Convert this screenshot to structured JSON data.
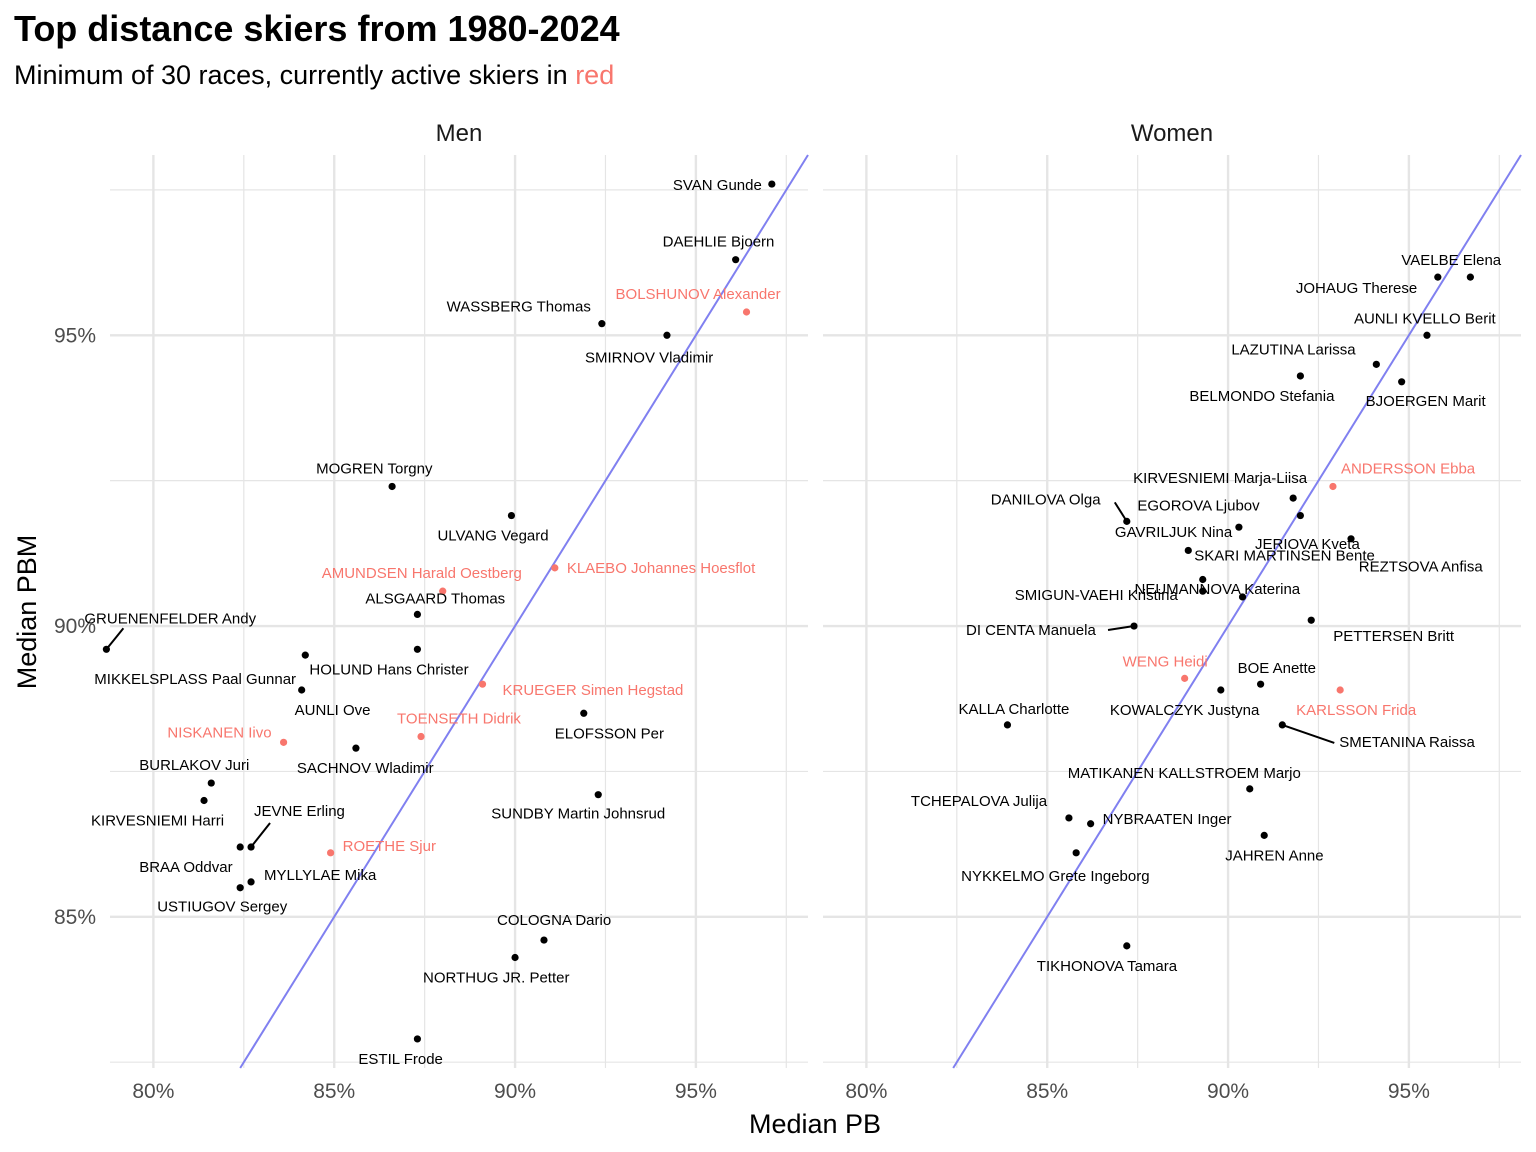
{
  "title": "Top distance skiers from 1980-2024",
  "subtitle": {
    "prefix": "Minimum of 30 races, currently active skiers in ",
    "accent_word": "red"
  },
  "colors": {
    "retired": "#000000",
    "active": "#F8766D",
    "reference_line": "#8080F0",
    "grid": "#E5E5E5",
    "axis_text": "#4D4D4D"
  },
  "chart_data": {
    "type": "scatter",
    "xlabel": "Median PB",
    "ylabel": "Median PBM",
    "x_ticks": [
      80,
      85,
      90,
      95
    ],
    "y_ticks": [
      85,
      90,
      95
    ],
    "tick_format": "{v}%",
    "xlim": [
      78.8,
      98.1
    ],
    "ylim": [
      82.4,
      98.1
    ],
    "reference_line": "y = x",
    "grid": true,
    "panels": [
      {
        "name": "Men",
        "points": [
          {
            "name": "SVAN Gunde",
            "x": 97.1,
            "y": 97.6,
            "active": false
          },
          {
            "name": "DAEHLIE Bjoern",
            "x": 96.1,
            "y": 96.3,
            "active": false
          },
          {
            "name": "BOLSHUNOV Alexander",
            "x": 96.4,
            "y": 95.4,
            "active": true
          },
          {
            "name": "WASSBERG Thomas",
            "x": 92.4,
            "y": 95.2,
            "active": false
          },
          {
            "name": "SMIRNOV Vladimir",
            "x": 94.2,
            "y": 95.0,
            "active": false
          },
          {
            "name": "MOGREN Torgny",
            "x": 86.6,
            "y": 92.4,
            "active": false
          },
          {
            "name": "ULVANG Vegard",
            "x": 89.9,
            "y": 91.9,
            "active": false
          },
          {
            "name": "KLAEBO Johannes Hoesflot",
            "x": 91.1,
            "y": 91.0,
            "active": true
          },
          {
            "name": "AMUNDSEN Harald Oestberg",
            "x": 88.0,
            "y": 90.6,
            "active": true
          },
          {
            "name": "GRUENENFELDER Andy",
            "x": 78.7,
            "y": 89.6,
            "active": false
          },
          {
            "name": "ALSGAARD Thomas",
            "x": 87.3,
            "y": 90.2,
            "active": false
          },
          {
            "name": "MIKKELSPLASS Paal Gunnar",
            "x": 84.2,
            "y": 89.5,
            "active": false
          },
          {
            "name": "HOLUND Hans Christer",
            "x": 87.3,
            "y": 89.6,
            "active": false
          },
          {
            "name": "KRUEGER Simen Hegstad",
            "x": 89.1,
            "y": 89.0,
            "active": true
          },
          {
            "name": "AUNLI Ove",
            "x": 84.1,
            "y": 88.9,
            "active": false
          },
          {
            "name": "ELOFSSON Per",
            "x": 91.9,
            "y": 88.5,
            "active": false
          },
          {
            "name": "TOENSETH Didrik",
            "x": 87.4,
            "y": 88.1,
            "active": true
          },
          {
            "name": "NISKANEN Iivo",
            "x": 83.6,
            "y": 88.0,
            "active": true
          },
          {
            "name": "SACHNOV Wladimir",
            "x": 85.6,
            "y": 87.9,
            "active": false
          },
          {
            "name": "BURLAKOV Juri",
            "x": 81.6,
            "y": 87.3,
            "active": false
          },
          {
            "name": "KIRVESNIEMI Harri",
            "x": 81.4,
            "y": 87.0,
            "active": false
          },
          {
            "name": "SUNDBY Martin Johnsrud",
            "x": 92.3,
            "y": 87.1,
            "active": false
          },
          {
            "name": "JEVNE Erling",
            "x": 82.7,
            "y": 86.2,
            "active": false
          },
          {
            "name": "BRAA Oddvar",
            "x": 82.4,
            "y": 86.2,
            "active": false
          },
          {
            "name": "ROETHE Sjur",
            "x": 84.9,
            "y": 86.1,
            "active": true
          },
          {
            "name": "MYLLYLAE Mika",
            "x": 82.7,
            "y": 85.6,
            "active": false
          },
          {
            "name": "USTIUGOV Sergey",
            "x": 82.4,
            "y": 85.5,
            "active": false
          },
          {
            "name": "COLOGNA Dario",
            "x": 90.8,
            "y": 84.6,
            "active": false
          },
          {
            "name": "NORTHUG JR. Petter",
            "x": 90.0,
            "y": 84.3,
            "active": false
          },
          {
            "name": "ESTIL Frode",
            "x": 87.3,
            "y": 82.9,
            "active": false
          }
        ]
      },
      {
        "name": "Women",
        "points": [
          {
            "name": "VAELBE Elena",
            "x": 96.7,
            "y": 96.0,
            "active": false
          },
          {
            "name": "JOHAUG Therese",
            "x": 95.8,
            "y": 96.0,
            "active": false
          },
          {
            "name": "AUNLI KVELLO Berit",
            "x": 95.5,
            "y": 95.0,
            "active": false
          },
          {
            "name": "LAZUTINA Larissa",
            "x": 94.1,
            "y": 94.5,
            "active": false
          },
          {
            "name": "BELMONDO Stefania",
            "x": 92.0,
            "y": 94.3,
            "active": false
          },
          {
            "name": "BJOERGEN Marit",
            "x": 94.8,
            "y": 94.2,
            "active": false
          },
          {
            "name": "KIRVESNIEMI Marja-Liisa",
            "x": 91.8,
            "y": 92.2,
            "active": false
          },
          {
            "name": "ANDERSSON Ebba",
            "x": 92.9,
            "y": 92.4,
            "active": true
          },
          {
            "name": "EGOROVA Ljubov",
            "x": 92.0,
            "y": 91.9,
            "active": false
          },
          {
            "name": "DANILOVA Olga",
            "x": 87.2,
            "y": 91.8,
            "active": false
          },
          {
            "name": "GAVRILJUK Nina",
            "x": 90.3,
            "y": 91.7,
            "active": false
          },
          {
            "name": "JERIOVA Kveta",
            "x": 93.4,
            "y": 91.5,
            "active": false
          },
          {
            "name": "SKARI MARTINSEN Bente",
            "x": 88.9,
            "y": 91.3,
            "active": false
          },
          {
            "name": "REZTSOVA Anfisa",
            "x": 89.3,
            "y": 90.8,
            "active": false
          },
          {
            "name": "SMIGUN-VAEHI Kristina",
            "x": 89.3,
            "y": 90.6,
            "active": false
          },
          {
            "name": "NEUMANNOVA Katerina",
            "x": 90.4,
            "y": 90.5,
            "active": false
          },
          {
            "name": "PETTERSEN Britt",
            "x": 92.3,
            "y": 90.1,
            "active": false
          },
          {
            "name": "DI CENTA Manuela",
            "x": 87.4,
            "y": 90.0,
            "active": false
          },
          {
            "name": "WENG Heidi",
            "x": 88.8,
            "y": 89.1,
            "active": true
          },
          {
            "name": "BOE Anette",
            "x": 90.9,
            "y": 89.0,
            "active": false
          },
          {
            "name": "KOWALCZYK Justyna",
            "x": 89.8,
            "y": 88.9,
            "active": false
          },
          {
            "name": "KARLSSON Frida",
            "x": 93.1,
            "y": 88.9,
            "active": true
          },
          {
            "name": "KALLA Charlotte",
            "x": 83.9,
            "y": 88.3,
            "active": false
          },
          {
            "name": "SMETANINA Raissa",
            "x": 91.5,
            "y": 88.3,
            "active": false
          },
          {
            "name": "MATIKANEN KALLSTROEM Marjo",
            "x": 90.6,
            "y": 87.2,
            "active": false
          },
          {
            "name": "TCHEPALOVA Julija",
            "x": 85.6,
            "y": 86.7,
            "active": false
          },
          {
            "name": "NYBRAATEN Inger",
            "x": 86.2,
            "y": 86.6,
            "active": false
          },
          {
            "name": "JAHREN Anne",
            "x": 91.0,
            "y": 86.4,
            "active": false
          },
          {
            "name": "NYKKELMO Grete Ingeborg",
            "x": 85.8,
            "y": 86.1,
            "active": false
          },
          {
            "name": "TIKHONOVA Tamara",
            "x": 87.2,
            "y": 84.5,
            "active": false
          }
        ]
      }
    ]
  }
}
